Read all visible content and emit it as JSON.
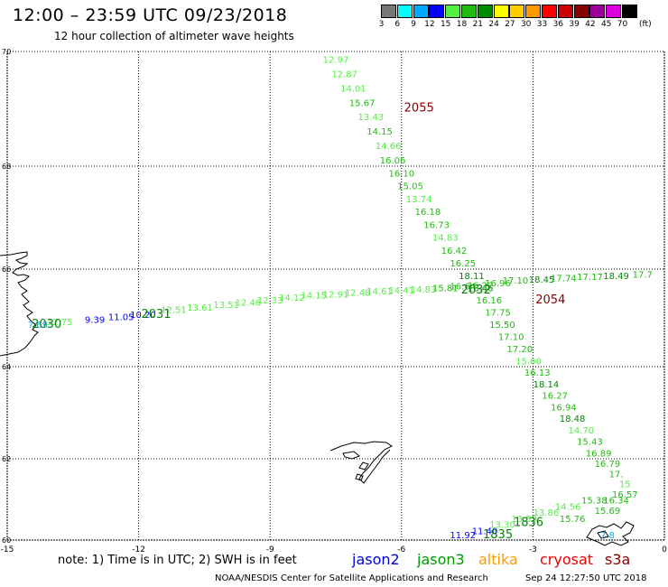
{
  "title": "12:00 – 23:59 UTC 09/23/2018",
  "subtitle": "12 hour collection of altimeter wave heights",
  "color_scale": {
    "unit": "(ft)",
    "entries": [
      {
        "label": "3",
        "color": "#777777"
      },
      {
        "label": "6",
        "color": "#00ffff"
      },
      {
        "label": "9",
        "color": "#00aaff"
      },
      {
        "label": "12",
        "color": "#0000ff"
      },
      {
        "label": "15",
        "color": "#55ee44"
      },
      {
        "label": "18",
        "color": "#22bb11"
      },
      {
        "label": "21",
        "color": "#008800"
      },
      {
        "label": "24",
        "color": "#ffff00"
      },
      {
        "label": "27",
        "color": "#ffcc00"
      },
      {
        "label": "30",
        "color": "#ff9900"
      },
      {
        "label": "33",
        "color": "#ff0000"
      },
      {
        "label": "36",
        "color": "#cc0000"
      },
      {
        "label": "39",
        "color": "#880000"
      },
      {
        "label": "42",
        "color": "#990099"
      },
      {
        "label": "45",
        "color": "#dd00dd"
      },
      {
        "label": "70",
        "color": "#000000"
      }
    ]
  },
  "axes": {
    "lon_ticks": [
      "-15",
      "-12",
      "-9",
      "-6",
      "-3",
      "0"
    ],
    "lat_ticks": [
      "70",
      "68",
      "66",
      "64",
      "62",
      "60"
    ]
  },
  "tracks": [
    {
      "id": "jason3-n",
      "passes": [
        {
          "text": "2055",
          "lon": -5.6,
          "lat": 68.95,
          "color": "#880000"
        }
      ],
      "points": [
        {
          "text": "12.97",
          "lon": -7.5,
          "lat": 69.8,
          "color": "#55ee44"
        },
        {
          "text": "12.87",
          "lon": -7.3,
          "lat": 69.55,
          "color": "#55ee44"
        },
        {
          "text": "14.01",
          "lon": -7.1,
          "lat": 69.3,
          "color": "#55ee44"
        },
        {
          "text": "15.67",
          "lon": -6.9,
          "lat": 69.05,
          "color": "#22bb11"
        },
        {
          "text": "13.43",
          "lon": -6.7,
          "lat": 68.8,
          "color": "#55ee44"
        },
        {
          "text": "14.15",
          "lon": -6.5,
          "lat": 68.55,
          "color": "#22bb11"
        },
        {
          "text": "14.66",
          "lon": -6.3,
          "lat": 68.3,
          "color": "#55ee44"
        },
        {
          "text": "16.06",
          "lon": -6.2,
          "lat": 68.05,
          "color": "#22bb11"
        },
        {
          "text": "16.10",
          "lon": -6.0,
          "lat": 67.8,
          "color": "#22bb11"
        },
        {
          "text": "15.05",
          "lon": -5.8,
          "lat": 67.55,
          "color": "#22bb11"
        },
        {
          "text": "13.74",
          "lon": -5.6,
          "lat": 67.3,
          "color": "#55ee44"
        },
        {
          "text": "16.18",
          "lon": -5.4,
          "lat": 67.05,
          "color": "#22bb11"
        },
        {
          "text": "16.73",
          "lon": -5.2,
          "lat": 66.8,
          "color": "#22bb11"
        },
        {
          "text": "14.83",
          "lon": -5.0,
          "lat": 66.55,
          "color": "#55ee44"
        },
        {
          "text": "16.42",
          "lon": -4.8,
          "lat": 66.3,
          "color": "#22bb11"
        },
        {
          "text": "16.25",
          "lon": -4.6,
          "lat": 66.05,
          "color": "#22bb11"
        },
        {
          "text": "18.11",
          "lon": -4.4,
          "lat": 65.8,
          "color": "#008800"
        },
        {
          "text": "18.46",
          "lon": -4.2,
          "lat": 65.55,
          "color": "#008800"
        },
        {
          "text": "16.16",
          "lon": -4.0,
          "lat": 65.3,
          "color": "#22bb11"
        },
        {
          "text": "17.75",
          "lon": -3.8,
          "lat": 65.05,
          "color": "#22bb11"
        },
        {
          "text": "15.50",
          "lon": -3.7,
          "lat": 64.8,
          "color": "#22bb11"
        },
        {
          "text": "17.10",
          "lon": -3.5,
          "lat": 64.55,
          "color": "#22bb11"
        },
        {
          "text": "17.20",
          "lon": -3.3,
          "lat": 64.3,
          "color": "#22bb11"
        },
        {
          "text": "15.00",
          "lon": -3.1,
          "lat": 64.05,
          "color": "#55ee44"
        },
        {
          "text": "16.13",
          "lon": -2.9,
          "lat": 63.8,
          "color": "#22bb11"
        },
        {
          "text": "18.14",
          "lon": -2.7,
          "lat": 63.55,
          "color": "#008800"
        },
        {
          "text": "16.27",
          "lon": -2.5,
          "lat": 63.3,
          "color": "#22bb11"
        },
        {
          "text": "16.94",
          "lon": -2.3,
          "lat": 63.05,
          "color": "#22bb11"
        },
        {
          "text": "18.48",
          "lon": -2.1,
          "lat": 62.8,
          "color": "#008800"
        },
        {
          "text": "14.70",
          "lon": -1.9,
          "lat": 62.55,
          "color": "#55ee44"
        },
        {
          "text": "15.43",
          "lon": -1.7,
          "lat": 62.3,
          "color": "#22bb11"
        },
        {
          "text": "16.89",
          "lon": -1.5,
          "lat": 62.05,
          "color": "#22bb11"
        },
        {
          "text": "16.79",
          "lon": -1.3,
          "lat": 61.8,
          "color": "#22bb11"
        },
        {
          "text": "17.",
          "lon": -1.1,
          "lat": 61.55,
          "color": "#22bb11"
        },
        {
          "text": "15",
          "lon": -0.9,
          "lat": 61.3,
          "color": "#55ee44"
        },
        {
          "text": "16.34",
          "lon": -1.1,
          "lat": 60.9,
          "color": "#22bb11"
        },
        {
          "text": "15.69",
          "lon": -1.3,
          "lat": 60.65,
          "color": "#22bb11"
        },
        {
          "text": "15.76",
          "lon": -2.1,
          "lat": 60.45,
          "color": "#22bb11"
        }
      ]
    },
    {
      "id": "jason3-cross",
      "passes": [
        {
          "text": "2054",
          "lon": -2.6,
          "lat": 65.3,
          "color": "#880000"
        },
        {
          "text": "2032",
          "lon": -4.3,
          "lat": 65.5,
          "color": "#008800"
        },
        {
          "text": "2031",
          "lon": -11.6,
          "lat": 65.0,
          "color": "#008800"
        },
        {
          "text": "2030",
          "lon": -14.1,
          "lat": 64.8,
          "color": "#008800"
        }
      ],
      "points": [
        {
          "text": "7.69",
          "lon": -14.3,
          "lat": 64.8,
          "color": "#00aaff"
        },
        {
          "text": "12.75",
          "lon": -13.8,
          "lat": 64.85,
          "color": "#55ee44"
        },
        {
          "text": "9.39",
          "lon": -13.0,
          "lat": 64.9,
          "color": "#0000ff"
        },
        {
          "text": "11.05",
          "lon": -12.4,
          "lat": 64.95,
          "color": "#0000ff"
        },
        {
          "text": "10.20",
          "lon": -11.9,
          "lat": 65.0,
          "color": "#0000ff"
        },
        {
          "text": "12.51",
          "lon": -11.2,
          "lat": 65.1,
          "color": "#55ee44"
        },
        {
          "text": "13.61",
          "lon": -10.6,
          "lat": 65.15,
          "color": "#55ee44"
        },
        {
          "text": "13.51",
          "lon": -10.0,
          "lat": 65.2,
          "color": "#55ee44"
        },
        {
          "text": "12.46",
          "lon": -9.5,
          "lat": 65.25,
          "color": "#55ee44"
        },
        {
          "text": "12.33",
          "lon": -9.0,
          "lat": 65.3,
          "color": "#55ee44"
        },
        {
          "text": "14.12",
          "lon": -8.5,
          "lat": 65.35,
          "color": "#55ee44"
        },
        {
          "text": "14.15",
          "lon": -8.0,
          "lat": 65.4,
          "color": "#55ee44"
        },
        {
          "text": "12.91",
          "lon": -7.5,
          "lat": 65.42,
          "color": "#55ee44"
        },
        {
          "text": "12.48",
          "lon": -7.0,
          "lat": 65.45,
          "color": "#55ee44"
        },
        {
          "text": "14.61",
          "lon": -6.5,
          "lat": 65.48,
          "color": "#55ee44"
        },
        {
          "text": "14.41",
          "lon": -6.0,
          "lat": 65.5,
          "color": "#55ee44"
        },
        {
          "text": "14.83",
          "lon": -5.5,
          "lat": 65.52,
          "color": "#55ee44"
        },
        {
          "text": "15.81",
          "lon": -5.0,
          "lat": 65.55,
          "color": "#22bb11"
        },
        {
          "text": "16.64",
          "lon": -4.6,
          "lat": 65.58,
          "color": "#22bb11"
        },
        {
          "text": "16.22",
          "lon": -4.2,
          "lat": 65.6,
          "color": "#22bb11"
        },
        {
          "text": "16.96",
          "lon": -3.8,
          "lat": 65.65,
          "color": "#22bb11"
        },
        {
          "text": "17.10",
          "lon": -3.4,
          "lat": 65.7,
          "color": "#22bb11"
        },
        {
          "text": "18.45",
          "lon": -2.8,
          "lat": 65.72,
          "color": "#008800"
        },
        {
          "text": "17.74",
          "lon": -2.3,
          "lat": 65.75,
          "color": "#22bb11"
        },
        {
          "text": "17.17",
          "lon": -1.7,
          "lat": 65.78,
          "color": "#22bb11"
        },
        {
          "text": "18.49",
          "lon": -1.1,
          "lat": 65.8,
          "color": "#008800"
        },
        {
          "text": "17.7",
          "lon": -0.5,
          "lat": 65.82,
          "color": "#22bb11"
        }
      ]
    },
    {
      "id": "jason3-s",
      "passes": [
        {
          "text": "1836",
          "lon": -3.1,
          "lat": 60.35,
          "color": "#008800"
        },
        {
          "text": "1835",
          "lon": -3.8,
          "lat": 60.05,
          "color": "#008800"
        }
      ],
      "points": [
        {
          "text": "11.92",
          "lon": -4.6,
          "lat": 60.05,
          "color": "#0000ff"
        },
        {
          "text": "11.40",
          "lon": -4.1,
          "lat": 60.15,
          "color": "#0000ff"
        },
        {
          "text": "13.30",
          "lon": -3.7,
          "lat": 60.3,
          "color": "#55ee44"
        },
        {
          "text": "13.59",
          "lon": -3.2,
          "lat": 60.45,
          "color": "#55ee44"
        },
        {
          "text": "13.86",
          "lon": -2.7,
          "lat": 60.6,
          "color": "#55ee44"
        },
        {
          "text": "14.56",
          "lon": -2.2,
          "lat": 60.75,
          "color": "#55ee44"
        },
        {
          "text": "15.38",
          "lon": -1.6,
          "lat": 60.9,
          "color": "#22bb11"
        },
        {
          "text": "16.57",
          "lon": -0.9,
          "lat": 61.05,
          "color": "#22bb11"
        },
        {
          "text": "7.8",
          "lon": -1.3,
          "lat": 60.05,
          "color": "#00aaff"
        }
      ]
    }
  ],
  "footer": {
    "note": "note: 1) Time is in UTC; 2) SWH is in feet",
    "legend": [
      {
        "text": "jason2",
        "color": "#0000dd"
      },
      {
        "text": "jason3",
        "color": "#009900"
      },
      {
        "text": "altika",
        "color": "#ff9900"
      },
      {
        "text": "cryosat",
        "color": "#ee0000"
      },
      {
        "text": "s3a",
        "color": "#880000"
      }
    ],
    "credit": "NOAA/NESDIS Center for Satellite Applications and Research",
    "timestamp": "Sep 24 12:27:50 UTC 2018"
  }
}
